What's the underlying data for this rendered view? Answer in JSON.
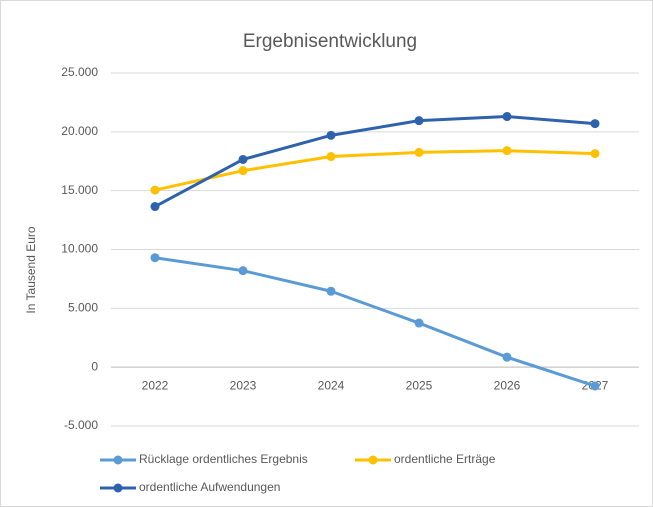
{
  "chart_data": {
    "type": "line",
    "title": "Ergebnisentwicklung",
    "y_label": "In Tausend Euro",
    "categories": [
      "2022",
      "2023",
      "2024",
      "2025",
      "2026",
      "2027"
    ],
    "series": [
      {
        "name": "Rücklage ordentliches Ergebnis",
        "color": "#5b9bd5",
        "values": [
          9300,
          8200,
          6450,
          3750,
          850,
          -1600
        ]
      },
      {
        "name": "ordentliche Erträge",
        "color": "#ffc000",
        "values": [
          15050,
          16700,
          17900,
          18250,
          18400,
          18150
        ]
      },
      {
        "name": "ordentliche Aufwendungen",
        "color": "#2e62ad",
        "values": [
          13650,
          17650,
          19700,
          20950,
          21300,
          20700
        ]
      }
    ],
    "ylim": [
      -5000,
      25000
    ],
    "yticks": [
      {
        "value": -5000,
        "label": "-5.000"
      },
      0,
      {
        "value": 5000,
        "label": "5.000"
      },
      {
        "value": 10000,
        "label": "10.000"
      },
      {
        "value": 15000,
        "label": "15.000"
      },
      {
        "value": 20000,
        "label": "20.000"
      },
      {
        "value": 25000,
        "label": "25.000"
      }
    ],
    "grid": true,
    "legend": "bottom"
  }
}
